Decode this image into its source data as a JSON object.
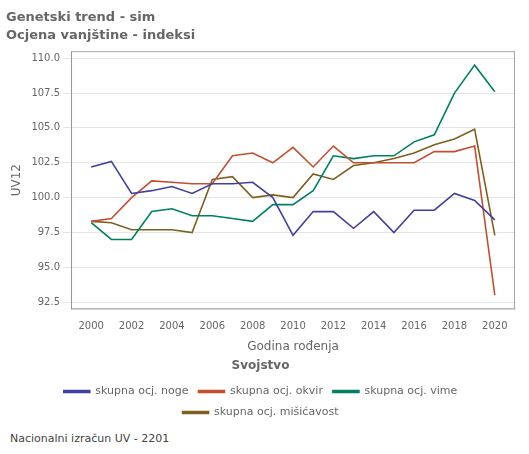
{
  "chart_data": {
    "type": "line",
    "title": "Genetski trend - sim",
    "subtitle": "Ocjena vanjštine - indeksi",
    "x_label": "Godina rođenja",
    "y_label": "UV12",
    "footnote": "Nacionalni izračun UV - 2201",
    "legend_title": "Svojstvo",
    "legend": "bottom",
    "grid": "y",
    "x": [
      2000,
      2001,
      2002,
      2003,
      2004,
      2005,
      2006,
      2007,
      2008,
      2009,
      2010,
      2011,
      2012,
      2013,
      2014,
      2015,
      2016,
      2017,
      2018,
      2019,
      2020
    ],
    "xlim": [
      1999,
      2021
    ],
    "xticks": [
      2000,
      2002,
      2004,
      2006,
      2008,
      2010,
      2012,
      2014,
      2016,
      2018,
      2020
    ],
    "ylim": [
      92.0,
      110.5
    ],
    "yticks": [
      92.5,
      {
        "value": 95.0,
        "label": "95.0"
      },
      97.5,
      {
        "value": 100.0,
        "label": "100.0"
      },
      102.5,
      {
        "value": 105.0,
        "label": "105.0"
      },
      107.5,
      {
        "value": 110.0,
        "label": "110.0"
      }
    ],
    "series": [
      {
        "name": "skupna ocj. noge",
        "color": "#4040a0",
        "values": [
          102.2,
          102.6,
          100.3,
          100.5,
          100.8,
          100.3,
          101.0,
          101.0,
          101.1,
          100.0,
          97.3,
          99.0,
          99.0,
          97.8,
          99.0,
          97.5,
          99.1,
          99.1,
          100.3,
          99.8,
          98.4
        ]
      },
      {
        "name": "skupna ocj. okvir",
        "color": "#c05030",
        "values": [
          98.3,
          98.5,
          100.0,
          101.2,
          101.1,
          101.0,
          101.0,
          103.0,
          103.2,
          102.5,
          103.6,
          102.2,
          103.7,
          102.5,
          102.5,
          102.5,
          102.5,
          103.3,
          103.3,
          103.7,
          93.0
        ]
      },
      {
        "name": "skupna ocj. vime",
        "color": "#008060",
        "values": [
          98.2,
          97.0,
          97.0,
          99.0,
          99.2,
          98.7,
          98.7,
          98.5,
          98.3,
          99.5,
          99.5,
          100.5,
          103.0,
          102.8,
          103.0,
          103.0,
          104.0,
          104.5,
          107.5,
          109.5,
          107.6
        ]
      },
      {
        "name": "skupna ocj. mišićavost",
        "color": "#806020",
        "values": [
          98.3,
          98.2,
          97.7,
          97.7,
          97.7,
          97.5,
          101.3,
          101.5,
          100.0,
          100.2,
          100.0,
          101.7,
          101.3,
          102.3,
          102.5,
          102.8,
          103.2,
          103.8,
          104.2,
          104.9,
          97.3
        ]
      }
    ]
  }
}
